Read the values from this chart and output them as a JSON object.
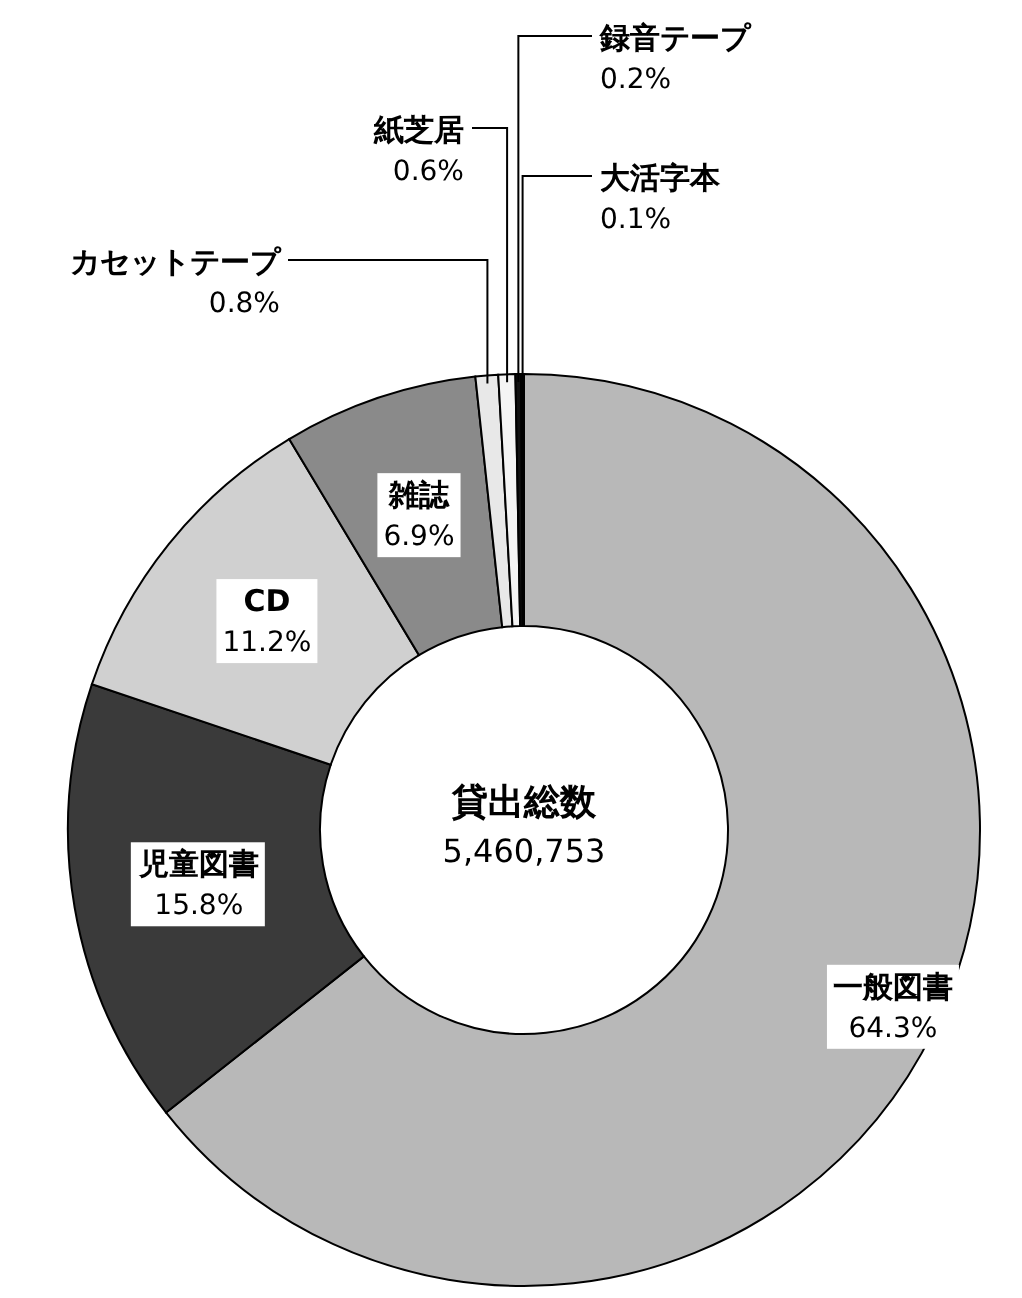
{
  "chart_data": {
    "type": "donut",
    "categories": [
      "一般図書",
      "児童図書",
      "CD",
      "雑誌",
      "カセットテープ",
      "紙芝居",
      "録音テープ",
      "大活字本"
    ],
    "values": [
      64.3,
      15.8,
      11.2,
      6.9,
      0.8,
      0.6,
      0.2,
      0.1
    ],
    "value_labels": [
      "64.3%",
      "15.8%",
      "11.2%",
      "6.9%",
      "0.8%",
      "0.6%",
      "0.2%",
      "0.1%"
    ],
    "colors": [
      "#b8b8b8",
      "#3a3a3a",
      "#d0d0d0",
      "#8a8a8a",
      "#e8e8e8",
      "#f4f4f4",
      "#111111",
      "#000000"
    ],
    "annotations": [
      "貸出総数",
      "5,460,753"
    ]
  }
}
